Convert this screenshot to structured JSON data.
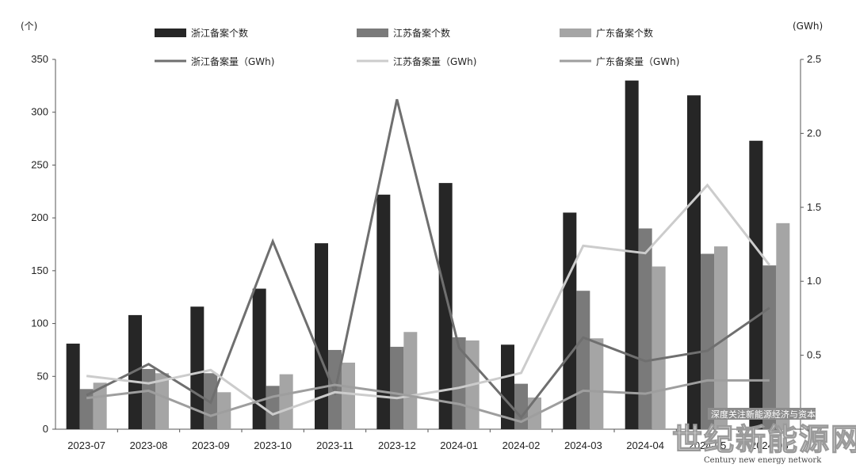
{
  "chart_data": {
    "type": "bar",
    "categories": [
      "2023-07",
      "2023-08",
      "2023-09",
      "2023-10",
      "2023-11",
      "2023-12",
      "2024-01",
      "2024-02",
      "2024-03",
      "2024-04",
      "2024-05",
      "2024-06"
    ],
    "left_unit": "(个)",
    "right_unit": "(GWh)",
    "ylim_left": [
      0,
      350
    ],
    "ylim_right": [
      0,
      2.5
    ],
    "yticks_left": [
      "0",
      "50",
      "100",
      "150",
      "200",
      "250",
      "300",
      "350"
    ],
    "yticks_right": [
      "0",
      "0.5",
      "1.0",
      "1.5",
      "2.0",
      "2.5"
    ],
    "bar_series": [
      {
        "name": "浙江备案个数",
        "color": "#262626",
        "values": [
          81,
          108,
          116,
          133,
          176,
          222,
          233,
          80,
          205,
          330,
          316,
          273
        ]
      },
      {
        "name": "江苏备案个数",
        "color": "#7a7a7a",
        "values": [
          38,
          57,
          53,
          41,
          75,
          78,
          87,
          43,
          131,
          190,
          166,
          155
        ]
      },
      {
        "name": "广东备案个数",
        "color": "#a5a5a5",
        "values": [
          44,
          53,
          35,
          52,
          63,
          92,
          84,
          30,
          86,
          154,
          173,
          195
        ]
      }
    ],
    "line_series": [
      {
        "name": "浙江备案量（GWh)",
        "color": "#6f6f6f",
        "values": [
          0.23,
          0.44,
          0.18,
          1.27,
          0.25,
          2.23,
          0.55,
          0.08,
          0.62,
          0.46,
          0.53,
          0.82
        ]
      },
      {
        "name": "江苏备案量（GWh)",
        "color": "#cccccc",
        "values": [
          0.36,
          0.31,
          0.4,
          0.1,
          0.25,
          0.21,
          0.28,
          0.38,
          1.24,
          1.19,
          1.65,
          1.11
        ]
      },
      {
        "name": "广东备案量（GWh)",
        "color": "#9e9e9e",
        "values": [
          0.21,
          0.26,
          0.09,
          0.22,
          0.3,
          0.24,
          0.17,
          0.05,
          0.26,
          0.24,
          0.33,
          0.33
        ]
      }
    ],
    "legend_placement": "top",
    "grid": false
  },
  "watermark": {
    "line1": "深度关注新能源经济与资本",
    "line2": "世纪新能源网",
    "line3": "Century new energy network"
  }
}
